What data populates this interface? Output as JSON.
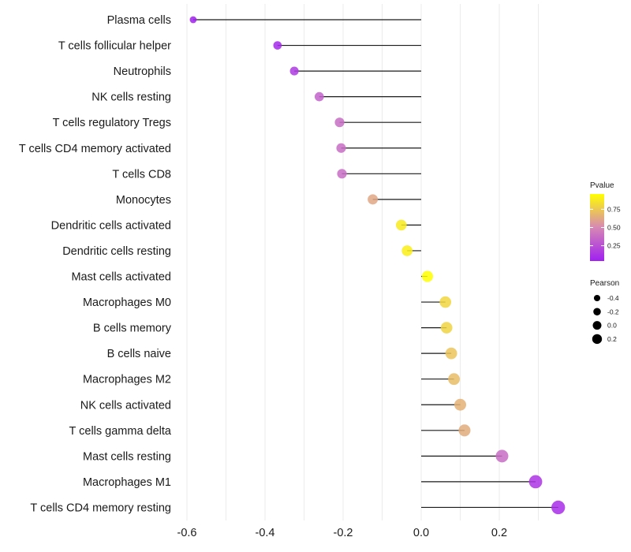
{
  "chart_data": {
    "type": "lollipop",
    "title": "",
    "xlabel": "",
    "ylabel": "",
    "xlim": [
      -0.6,
      0.36
    ],
    "x_ticks": [
      -0.6,
      -0.4,
      -0.2,
      0.0,
      0.2
    ],
    "x_tick_labels": [
      "-0.6",
      "-0.4",
      "-0.2",
      "0.0",
      "0.2"
    ],
    "grid": true,
    "baseline": 0.0,
    "categories": [
      "Plasma cells",
      "T cells follicular helper",
      "Neutrophils",
      "NK cells resting",
      "T cells regulatory  Tregs ",
      "T cells CD4 memory activated",
      "T cells CD8",
      "Monocytes",
      "Dendritic cells activated",
      "Dendritic cells resting",
      "Mast cells activated",
      "Macrophages M0",
      "B cells memory",
      "B cells naive",
      "Macrophages M2",
      "NK cells activated",
      "T cells gamma delta",
      "Mast cells resting",
      "Macrophages M1",
      "T cells CD4 memory resting"
    ],
    "pearson": [
      -0.584,
      -0.368,
      -0.325,
      -0.261,
      -0.209,
      -0.205,
      -0.203,
      -0.124,
      -0.051,
      -0.036,
      0.016,
      0.062,
      0.065,
      0.077,
      0.084,
      0.1,
      0.111,
      0.207,
      0.293,
      0.351
    ],
    "pvalue": [
      0.02,
      0.08,
      0.15,
      0.33,
      0.38,
      0.38,
      0.38,
      0.62,
      0.88,
      0.9,
      0.96,
      0.8,
      0.79,
      0.73,
      0.7,
      0.66,
      0.64,
      0.38,
      0.13,
      0.1
    ],
    "legend": {
      "placement": "right",
      "color": {
        "title": "Pvalue",
        "ticks": [
          0.25,
          0.5,
          0.75
        ],
        "tick_labels": [
          "0.25",
          "0.50",
          "0.75"
        ],
        "range": [
          0.04,
          0.96
        ],
        "low_color": "#A020F0",
        "mid_color": "#D688B4",
        "high_color": "#FFFF00"
      },
      "size": {
        "title": "Pearson",
        "values": [
          -0.4,
          -0.2,
          0.0,
          0.2
        ],
        "labels": [
          "-0.4",
          "-0.2",
          "0.0",
          "0.2"
        ]
      }
    }
  }
}
